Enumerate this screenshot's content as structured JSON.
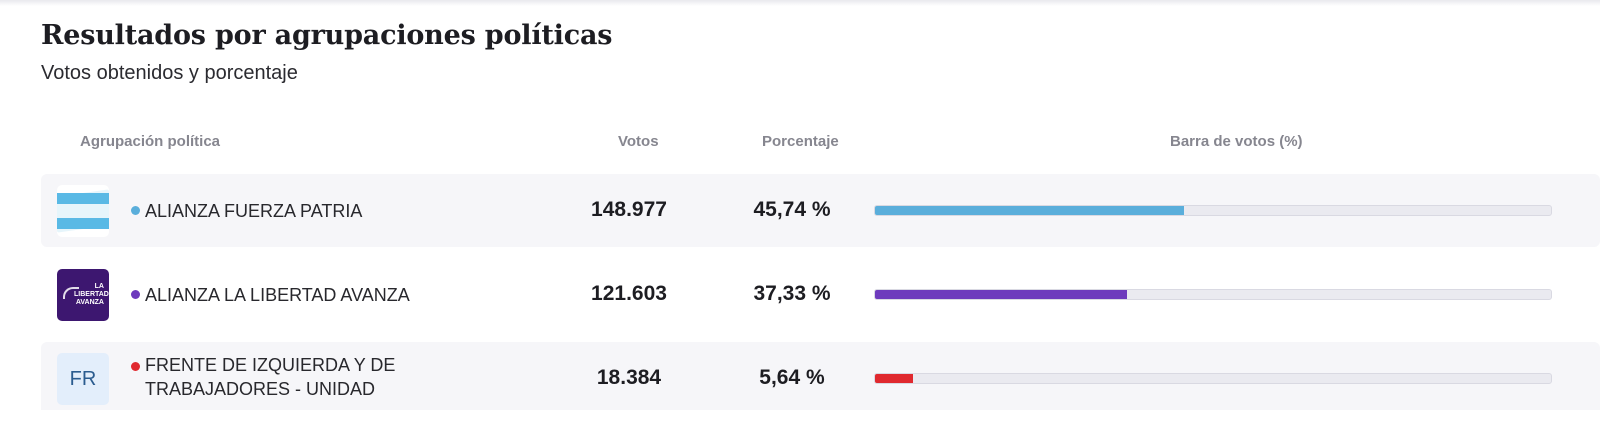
{
  "header": {
    "title": "Resultados por agrupaciones políticas",
    "subtitle": "Votos obtenidos y porcentaje"
  },
  "columns": {
    "party": "Agrupación política",
    "votes": "Votos",
    "percentage": "Porcentaje",
    "bar": "Barra de votos (%)"
  },
  "rows": [
    {
      "name": "ALIANZA FUERZA PATRIA",
      "votes": "148.977",
      "percentage": "45,74 %",
      "fraction": 0.4574,
      "color": "#5aaedb",
      "logo": "argentina-flag-icon"
    },
    {
      "name": "ALIANZA LA LIBERTAD AVANZA",
      "votes": "121.603",
      "percentage": "37,33 %",
      "fraction": 0.3733,
      "color": "#6e3bbd",
      "logo": "la-libertad-avanza-logo",
      "logo_text": "LA LIBERTAD AVANZA"
    },
    {
      "name": "FRENTE DE IZQUIERDA Y DE TRABAJADORES - UNIDAD",
      "votes": "18.384",
      "percentage": "5,64 %",
      "fraction": 0.0564,
      "color": "#e0292f",
      "logo": "initials-badge",
      "initials": "FR"
    }
  ]
}
